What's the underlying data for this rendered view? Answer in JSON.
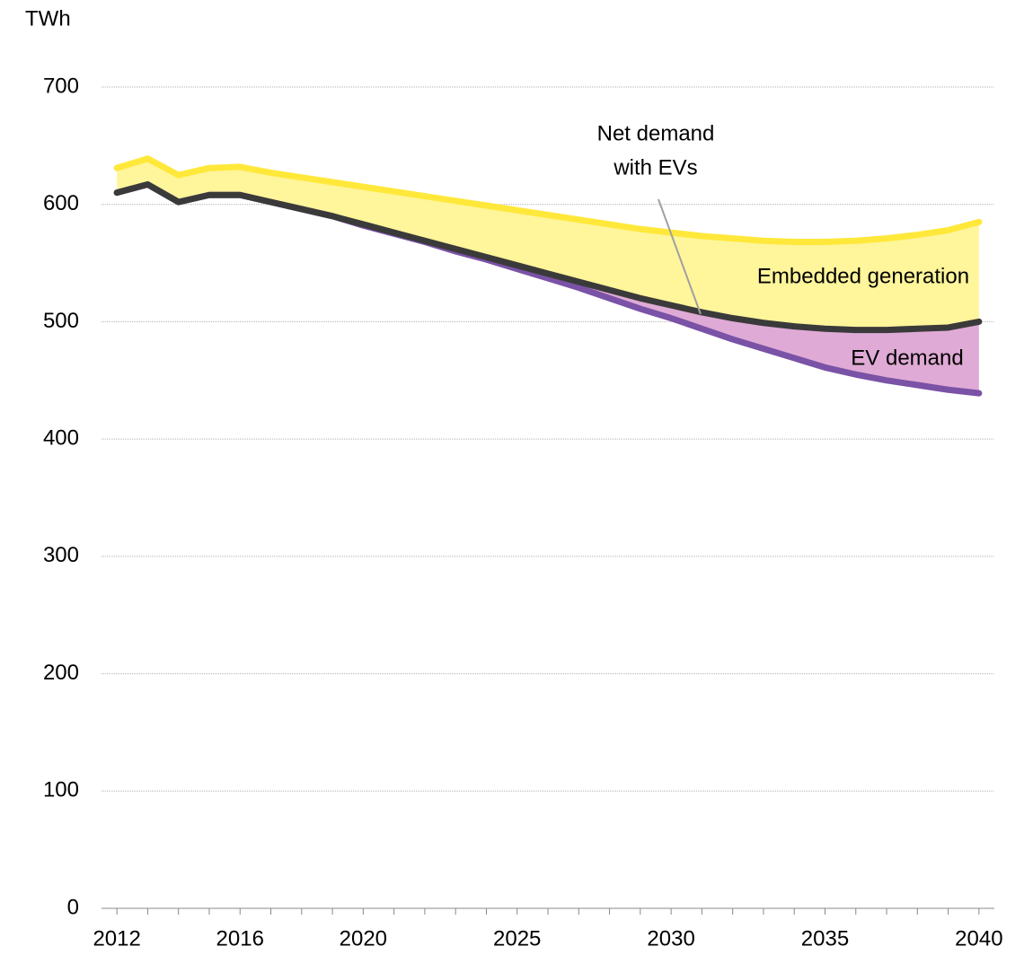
{
  "chart_data": {
    "type": "area",
    "y_axis_label": "TWh",
    "x": [
      2012,
      2013,
      2014,
      2015,
      2016,
      2017,
      2018,
      2019,
      2020,
      2021,
      2022,
      2023,
      2024,
      2025,
      2026,
      2027,
      2028,
      2029,
      2030,
      2031,
      2032,
      2033,
      2034,
      2035,
      2036,
      2037,
      2038,
      2039,
      2040
    ],
    "series": [
      {
        "color": "#ffe83a",
        "fill": "#fff59a",
        "values": [
          631,
          639,
          625,
          631,
          632,
          627,
          623,
          619,
          615,
          611,
          607,
          603,
          599,
          595,
          591,
          587,
          583,
          579,
          576,
          573,
          571,
          569,
          568,
          568,
          569,
          571,
          574,
          578,
          585
        ]
      },
      {
        "color": "#3a3a3a",
        "fill": "#dfaad5",
        "values": [
          610,
          617,
          602,
          608,
          608,
          602,
          596,
          590,
          583,
          576,
          569,
          562,
          555,
          548,
          541,
          534,
          527,
          520,
          514,
          508,
          503,
          499,
          496,
          494,
          493,
          493,
          494,
          495,
          500
        ]
      },
      {
        "color": "#7a52a6",
        "values": [
          610,
          617,
          602,
          608,
          608,
          602,
          596,
          590,
          582,
          575,
          568,
          560,
          553,
          545,
          537,
          529,
          520,
          511,
          503,
          494,
          485,
          477,
          469,
          461,
          455,
          450,
          446,
          442,
          439
        ]
      }
    ],
    "annotations": [
      {
        "text": "Net demand"
      },
      {
        "text": "with EVs"
      },
      {
        "text": "Embedded generation"
      },
      {
        "text": "EV demand"
      }
    ],
    "xlim": [
      2011.5,
      2040.5
    ],
    "xticks": [
      2012,
      2016,
      2020,
      2025,
      2030,
      2035,
      2040
    ],
    "ylim": [
      0,
      700
    ],
    "yticks": [
      0,
      100,
      200,
      300,
      400,
      500,
      600,
      700
    ],
    "grid": true
  }
}
